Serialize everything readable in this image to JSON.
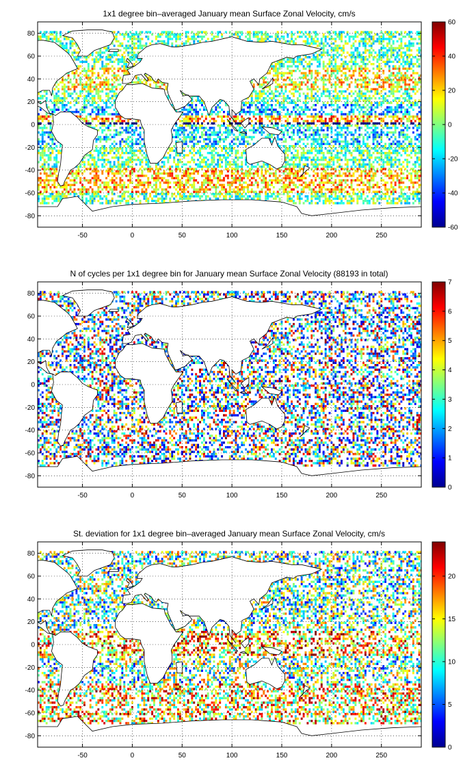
{
  "chart_data": [
    {
      "type": "heatmap",
      "title": "1x1 degree bin–averaged January mean Surface Zonal Velocity, cm/s",
      "xlim": [
        -95,
        290
      ],
      "ylim": [
        -90,
        90
      ],
      "x_ticks": [
        -50,
        0,
        50,
        100,
        150,
        200,
        250
      ],
      "y_ticks": [
        80,
        60,
        40,
        20,
        0,
        -20,
        -40,
        -60,
        -80
      ],
      "colorbar": {
        "min": -60,
        "max": 60,
        "ticks": [
          60,
          40,
          20,
          0,
          -20,
          -40,
          -60
        ]
      },
      "grid": true
    },
    {
      "type": "heatmap",
      "title": "N of cycles per 1x1 degree bin for January mean Surface Zonal Velocity (88193 in total)",
      "xlim": [
        -95,
        290
      ],
      "ylim": [
        -90,
        90
      ],
      "x_ticks": [
        -50,
        0,
        50,
        100,
        150,
        200,
        250
      ],
      "y_ticks": [
        80,
        60,
        40,
        20,
        0,
        -20,
        -40,
        -60,
        -80
      ],
      "colorbar": {
        "min": 0,
        "max": 7,
        "ticks": [
          7,
          6,
          5,
          4,
          3,
          2,
          1,
          0
        ]
      },
      "total_cycles": 88193,
      "grid": true
    },
    {
      "type": "heatmap",
      "title": "St. deviation for 1x1 degree bin–averaged January mean Surface Zonal Velocity, cm/s",
      "xlim": [
        -95,
        290
      ],
      "ylim": [
        -90,
        90
      ],
      "x_ticks": [
        -50,
        0,
        50,
        100,
        150,
        200,
        250
      ],
      "y_ticks": [
        80,
        60,
        40,
        20,
        0,
        -20,
        -40,
        -60,
        -80
      ],
      "colorbar": {
        "min": 0,
        "max": 24,
        "ticks": [
          20,
          15,
          10,
          5,
          0
        ]
      },
      "grid": true
    }
  ]
}
